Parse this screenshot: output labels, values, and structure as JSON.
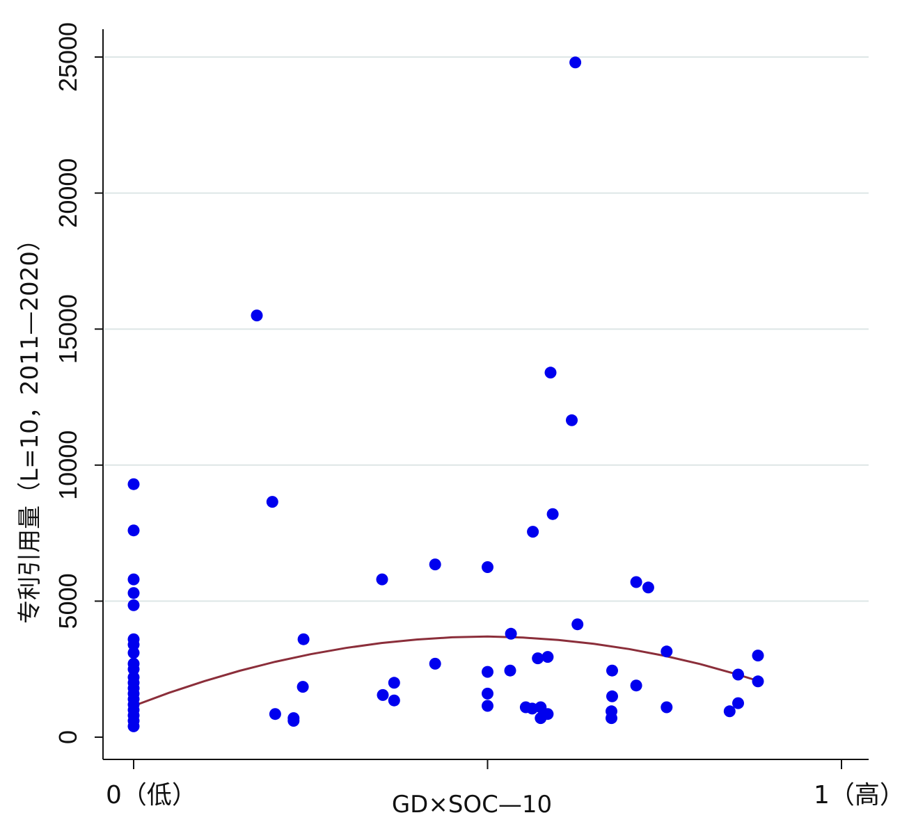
{
  "chart_data": {
    "type": "scatter",
    "xlabel": "GD×SOC—10",
    "ylabel": "专利引用量（L=10，2011—2020）",
    "xlim": [
      0,
      1
    ],
    "ylim": [
      0,
      25000
    ],
    "x_ticks": [
      {
        "value": 0,
        "label": "0（低）"
      },
      {
        "value": 0.5,
        "label": ""
      },
      {
        "value": 1,
        "label": "1（高）"
      }
    ],
    "y_ticks": [
      {
        "value": 0,
        "label": "0"
      },
      {
        "value": 5000,
        "label": "5000"
      },
      {
        "value": 10000,
        "label": "10000"
      },
      {
        "value": 15000,
        "label": "15000"
      },
      {
        "value": 20000,
        "label": "20000"
      },
      {
        "value": 25000,
        "label": "25000"
      }
    ],
    "grid": "horizontal",
    "colors": {
      "points": "#0000ee",
      "fit": "#8b2e3a",
      "grid": "#dde6e6",
      "axis": "#111111"
    },
    "series": [
      {
        "type": "scatter",
        "points": [
          [
            0.0,
            9300
          ],
          [
            0.0,
            7600
          ],
          [
            0.0,
            5800
          ],
          [
            0.0,
            5300
          ],
          [
            0.0,
            4850
          ],
          [
            0.0,
            3600
          ],
          [
            0.0,
            3400
          ],
          [
            0.0,
            3100
          ],
          [
            0.0,
            2700
          ],
          [
            0.0,
            2500
          ],
          [
            0.0,
            2200
          ],
          [
            0.0,
            2000
          ],
          [
            0.0,
            1800
          ],
          [
            0.0,
            1600
          ],
          [
            0.0,
            1400
          ],
          [
            0.0,
            1200
          ],
          [
            0.0,
            1000
          ],
          [
            0.0,
            800
          ],
          [
            0.0,
            600
          ],
          [
            0.0,
            400
          ],
          [
            0.174,
            15500
          ],
          [
            0.196,
            8650
          ],
          [
            0.2,
            850
          ],
          [
            0.226,
            700
          ],
          [
            0.226,
            600
          ],
          [
            0.24,
            3600
          ],
          [
            0.239,
            1850
          ],
          [
            0.351,
            5800
          ],
          [
            0.352,
            1550
          ],
          [
            0.368,
            2000
          ],
          [
            0.368,
            1350
          ],
          [
            0.426,
            6350
          ],
          [
            0.426,
            2700
          ],
          [
            0.5,
            6250
          ],
          [
            0.5,
            2400
          ],
          [
            0.5,
            1600
          ],
          [
            0.5,
            1150
          ],
          [
            0.533,
            3800
          ],
          [
            0.532,
            2450
          ],
          [
            0.554,
            1100
          ],
          [
            0.563,
            1050
          ],
          [
            0.564,
            7550
          ],
          [
            0.571,
            2900
          ],
          [
            0.575,
            1100
          ],
          [
            0.575,
            700
          ],
          [
            0.585,
            2950
          ],
          [
            0.585,
            850
          ],
          [
            0.589,
            13400
          ],
          [
            0.592,
            8200
          ],
          [
            0.619,
            11650
          ],
          [
            0.624,
            24800
          ],
          [
            0.627,
            4150
          ],
          [
            0.676,
            2450
          ],
          [
            0.676,
            1500
          ],
          [
            0.675,
            950
          ],
          [
            0.675,
            700
          ],
          [
            0.71,
            5700
          ],
          [
            0.71,
            1900
          ],
          [
            0.727,
            5500
          ],
          [
            0.753,
            3150
          ],
          [
            0.753,
            1100
          ],
          [
            0.842,
            950
          ],
          [
            0.854,
            2300
          ],
          [
            0.854,
            1250
          ],
          [
            0.882,
            3000
          ],
          [
            0.882,
            2050
          ]
        ]
      },
      {
        "type": "line",
        "name": "",
        "x": [
          0.0,
          0.05,
          0.1,
          0.15,
          0.2,
          0.25,
          0.3,
          0.35,
          0.4,
          0.45,
          0.5,
          0.55,
          0.6,
          0.65,
          0.7,
          0.75,
          0.8,
          0.85,
          0.882
        ],
        "y": [
          1150,
          1630,
          2060,
          2440,
          2770,
          3050,
          3280,
          3460,
          3590,
          3670,
          3700,
          3660,
          3570,
          3430,
          3240,
          2990,
          2690,
          2330,
          2070
        ]
      }
    ]
  }
}
